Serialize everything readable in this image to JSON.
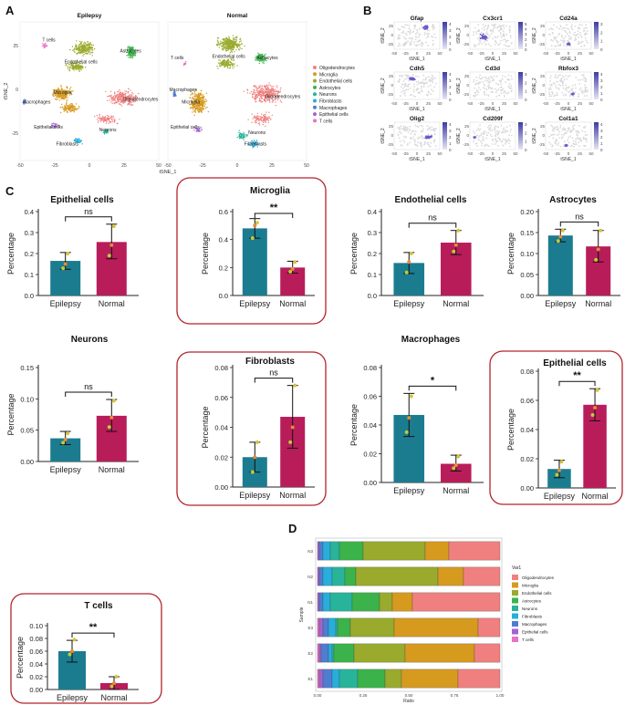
{
  "panel_labels": {
    "a": "A",
    "b": "B",
    "c": "C",
    "d": "D"
  },
  "colors": {
    "epilepsy_bar": "#1b7c90",
    "normal_bar": "#b81d5a",
    "highlight_border": "#b3232a",
    "celltypes": {
      "Oligodendrocytes": "#f08080",
      "Microglia": "#d69a1e",
      "Endothelial cells": "#9aaa2c",
      "Astrocytes": "#3bb34a",
      "Neurons": "#28b49a",
      "Fibroblasts": "#27aedb",
      "Macrophages": "#4e7ed2",
      "Epithelial cells": "#a463cf",
      "T cells": "#e870c6"
    }
  },
  "panel_a": {
    "xlabel": "tSNE_1",
    "ylabel": "tSNE_2",
    "facets": [
      {
        "title": "Epilepsy",
        "labels": [
          "T cells",
          "Astrocytes",
          "Endothelial cells",
          "Microglia",
          "Macrophages",
          "Oligodendrocytes",
          "Epithelial cells",
          "Neurons",
          "Fibroblasts"
        ]
      },
      {
        "title": "Normal",
        "labels": [
          "T cells",
          "Endothelial cells",
          "Astrocytes",
          "Microglia",
          "Oligodendrocytes",
          "Macrophages",
          "Epithelial cells",
          "Neurons",
          "Fibroblasts"
        ]
      }
    ],
    "xticks": [
      "-50",
      "-25",
      "0",
      "25",
      "50"
    ],
    "yticks": [
      "25",
      "0",
      "-25"
    ],
    "legend": [
      "Oligodendrocytes",
      "Microglia",
      "Endothelial cells",
      "Astrocytes",
      "Neurons",
      "Fibroblasts",
      "Macrophages",
      "Epithelial cells",
      "T cells"
    ]
  },
  "panel_b": {
    "xlabel": "tSNE_1",
    "ylabel": "tSNE_2",
    "xticks": [
      "-50",
      "-25",
      "0",
      "25",
      "50"
    ],
    "yticks": [
      "25",
      "0",
      "-25"
    ],
    "genes": [
      {
        "name": "Gfap",
        "scale": [
          "4",
          "3",
          "2",
          "1",
          "0"
        ]
      },
      {
        "name": "Cx3cr1",
        "scale": [
          "5",
          "4",
          "3",
          "2",
          "1",
          "0"
        ]
      },
      {
        "name": "Cd24a",
        "scale": [
          "3",
          "2",
          "1",
          "0"
        ]
      },
      {
        "name": "Cdh5",
        "scale": [
          "4",
          "3",
          "2",
          "1",
          "0"
        ]
      },
      {
        "name": "Cd3d",
        "scale": [
          "3",
          "2",
          "1",
          "0"
        ]
      },
      {
        "name": "Rbfox3",
        "scale": [
          "4",
          "3",
          "2",
          "1",
          "0"
        ]
      },
      {
        "name": "Olig2",
        "scale": [
          "4",
          "3",
          "2",
          "1",
          "0"
        ]
      },
      {
        "name": "Cd209f",
        "scale": [
          "3",
          "2",
          "1",
          "0"
        ]
      },
      {
        "name": "Col1a1",
        "scale": [
          "4",
          "3",
          "2",
          "1",
          "0"
        ]
      }
    ]
  },
  "chart_data": [
    {
      "type": "bar",
      "title": "Epithelial cells",
      "categories": [
        "Epilepsy",
        "Normal"
      ],
      "values": [
        0.165,
        0.255
      ],
      "errors": [
        [
          0.125,
          0.205
        ],
        [
          0.175,
          0.34
        ]
      ],
      "points": [
        [
          0.13,
          0.15,
          0.2
        ],
        [
          0.19,
          0.24,
          0.33
        ]
      ],
      "ylabel": "Percentage",
      "ylim": [
        0,
        0.4
      ],
      "yticks": [
        0.0,
        0.1,
        0.2,
        0.3,
        0.4
      ],
      "tick_labels": [
        "0.0",
        "0.1",
        "0.2",
        "0.3",
        "0.4"
      ],
      "significance": "ns",
      "highlighted": false
    },
    {
      "type": "bar",
      "title": "Microglia",
      "categories": [
        "Epilepsy",
        "Normal"
      ],
      "values": [
        0.48,
        0.2
      ],
      "errors": [
        [
          0.41,
          0.55
        ],
        [
          0.16,
          0.245
        ]
      ],
      "points": [
        [
          0.41,
          0.5,
          0.52
        ],
        [
          0.17,
          0.19,
          0.24
        ]
      ],
      "ylabel": "Percentage",
      "ylim": [
        0,
        0.6
      ],
      "yticks": [
        0.0,
        0.2,
        0.4,
        0.6
      ],
      "tick_labels": [
        "0.0",
        "0.2",
        "0.4",
        "0.6"
      ],
      "significance": "**",
      "highlighted": true
    },
    {
      "type": "bar",
      "title": "Endothelial cells",
      "categories": [
        "Epilepsy",
        "Normal"
      ],
      "values": [
        0.155,
        0.252
      ],
      "errors": [
        [
          0.105,
          0.205
        ],
        [
          0.195,
          0.31
        ]
      ],
      "points": [
        [
          0.11,
          0.16,
          0.2
        ],
        [
          0.21,
          0.24,
          0.31
        ]
      ],
      "ylabel": "Percentage",
      "ylim": [
        0,
        0.4
      ],
      "yticks": [
        0.0,
        0.1,
        0.2,
        0.3,
        0.4
      ],
      "tick_labels": [
        "0.0",
        "0.1",
        "0.2",
        "0.3",
        "0.4"
      ],
      "significance": "ns",
      "highlighted": false
    },
    {
      "type": "bar",
      "title": "Astrocytes",
      "categories": [
        "Epilepsy",
        "Normal"
      ],
      "values": [
        0.143,
        0.117
      ],
      "errors": [
        [
          0.128,
          0.158
        ],
        [
          0.08,
          0.155
        ]
      ],
      "points": [
        [
          0.13,
          0.14,
          0.155
        ],
        [
          0.085,
          0.11,
          0.155
        ]
      ],
      "ylabel": "Percentage",
      "ylim": [
        0,
        0.2
      ],
      "yticks": [
        0.0,
        0.05,
        0.1,
        0.15,
        0.2
      ],
      "tick_labels": [
        "0.00",
        "0.05",
        "0.10",
        "0.15",
        "0.20"
      ],
      "significance": "ns",
      "highlighted": false
    },
    {
      "type": "bar",
      "title": "Neurons",
      "categories": [
        "Epilepsy",
        "Normal"
      ],
      "values": [
        0.037,
        0.073
      ],
      "errors": [
        [
          0.027,
          0.048
        ],
        [
          0.048,
          0.099
        ]
      ],
      "points": [
        [
          0.03,
          0.035,
          0.045
        ],
        [
          0.055,
          0.07,
          0.097
        ]
      ],
      "ylabel": "Percentage",
      "ylim": [
        0,
        0.15
      ],
      "yticks": [
        0.0,
        0.05,
        0.1,
        0.15
      ],
      "tick_labels": [
        "0.00",
        "0.05",
        "0.10",
        "0.15"
      ],
      "significance": "ns",
      "highlighted": false
    },
    {
      "type": "bar",
      "title": "Fibroblasts",
      "categories": [
        "Epilepsy",
        "Normal"
      ],
      "values": [
        0.02,
        0.047
      ],
      "errors": [
        [
          0.01,
          0.03
        ],
        [
          0.026,
          0.068
        ]
      ],
      "points": [
        [
          0.01,
          0.02,
          0.03
        ],
        [
          0.03,
          0.04,
          0.068
        ]
      ],
      "ylabel": "Percentage",
      "ylim": [
        0,
        0.08
      ],
      "yticks": [
        0.0,
        0.02,
        0.04,
        0.06,
        0.08
      ],
      "tick_labels": [
        "0.00",
        "0.02",
        "0.04",
        "0.06",
        "0.08"
      ],
      "significance": "ns",
      "highlighted": true
    },
    {
      "type": "bar",
      "title": "Macrophages",
      "categories": [
        "Epilepsy",
        "Normal"
      ],
      "values": [
        0.047,
        0.013
      ],
      "errors": [
        [
          0.032,
          0.062
        ],
        [
          0.008,
          0.019
        ]
      ],
      "points": [
        [
          0.035,
          0.045,
          0.06
        ],
        [
          0.01,
          0.012,
          0.018
        ]
      ],
      "ylabel": "Percentage",
      "ylim": [
        0,
        0.08
      ],
      "yticks": [
        0.0,
        0.02,
        0.04,
        0.06,
        0.08
      ],
      "tick_labels": [
        "0.00",
        "0.02",
        "0.04",
        "0.06",
        "0.08"
      ],
      "significance": "*",
      "highlighted": false
    },
    {
      "type": "bar",
      "title": "Epithelial cells",
      "categories": [
        "Epilepsy",
        "Normal"
      ],
      "values": [
        0.013,
        0.057
      ],
      "errors": [
        [
          0.007,
          0.019
        ],
        [
          0.046,
          0.068
        ]
      ],
      "points": [
        [
          0.009,
          0.012,
          0.018
        ],
        [
          0.05,
          0.055,
          0.067
        ]
      ],
      "ylabel": "Percentage",
      "ylim": [
        0,
        0.08
      ],
      "yticks": [
        0.0,
        0.02,
        0.04,
        0.06,
        0.08
      ],
      "tick_labels": [
        "0.00",
        "0.02",
        "0.04",
        "0.06",
        "0.08"
      ],
      "significance": "**",
      "highlighted": true
    },
    {
      "type": "bar",
      "title": "T cells",
      "categories": [
        "Epilepsy",
        "Normal"
      ],
      "values": [
        0.06,
        0.01
      ],
      "errors": [
        [
          0.043,
          0.077
        ],
        [
          0.0,
          0.02
        ]
      ],
      "points": [
        [
          0.055,
          0.06,
          0.078
        ],
        [
          0.005,
          0.01,
          0.02
        ]
      ],
      "ylabel": "Percentage",
      "ylim": [
        0,
        0.1
      ],
      "yticks": [
        0.0,
        0.02,
        0.04,
        0.06,
        0.08,
        0.1
      ],
      "tick_labels": [
        "0.00",
        "0.02",
        "0.04",
        "0.06",
        "0.08",
        "0.10"
      ],
      "significance": "**",
      "highlighted": true
    },
    {
      "type": "stacked_bar",
      "orientation": "horizontal",
      "xlabel": "Ratio",
      "ylabel": "Sample",
      "legend_title": "Var1",
      "samples": [
        "N3",
        "N2",
        "N1",
        "E3",
        "E2",
        "E1"
      ],
      "xticks": [
        "0.00",
        "0.25",
        "0.50",
        "0.75",
        "1.00"
      ],
      "series_order": [
        "T cells",
        "Epithelial cells",
        "Macrophages",
        "Fibroblasts",
        "Neurons",
        "Astrocytes",
        "Endothelial cells",
        "Microglia",
        "Oligodendrocytes"
      ],
      "legend": [
        "Oligodendrocytes",
        "Microglia",
        "Endothelial cells",
        "Astrocytes",
        "Neurons",
        "Fibroblasts",
        "Macrophages",
        "Epithelial cells",
        "T cells"
      ],
      "values": {
        "N3": [
          0.0,
          0.01,
          0.02,
          0.04,
          0.05,
          0.13,
          0.34,
          0.13,
          0.28
        ],
        "N2": [
          0.0,
          0.01,
          0.02,
          0.05,
          0.07,
          0.06,
          0.45,
          0.14,
          0.2
        ],
        "N1": [
          0.0,
          0.01,
          0.02,
          0.04,
          0.12,
          0.15,
          0.07,
          0.11,
          0.48
        ],
        "E3": [
          0.01,
          0.02,
          0.03,
          0.04,
          0.01,
          0.07,
          0.24,
          0.46,
          0.12
        ],
        "E2": [
          0.01,
          0.01,
          0.04,
          0.02,
          0.01,
          0.11,
          0.28,
          0.38,
          0.14
        ],
        "E1": [
          0.01,
          0.02,
          0.05,
          0.04,
          0.1,
          0.15,
          0.09,
          0.31,
          0.23
        ]
      }
    }
  ]
}
